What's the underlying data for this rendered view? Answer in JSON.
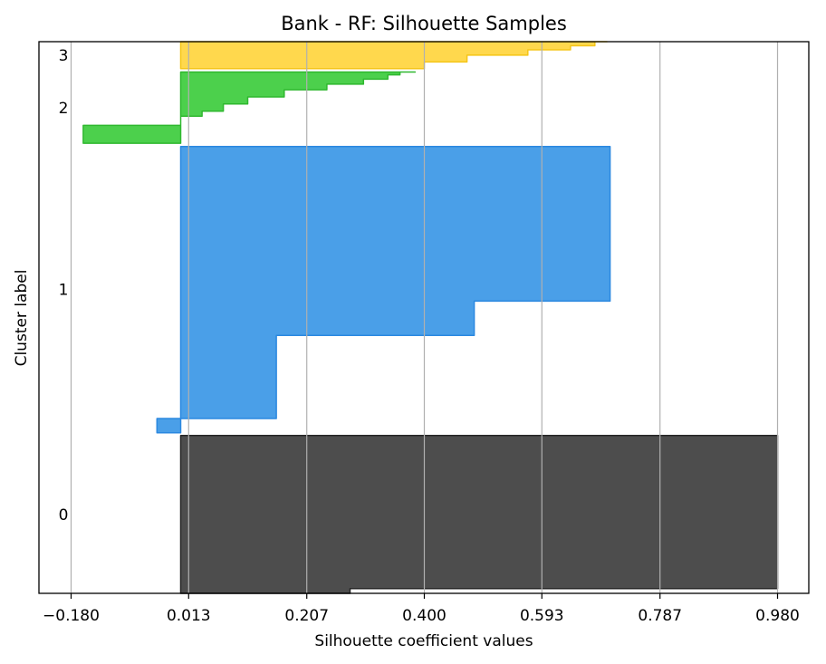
{
  "chart_data": {
    "type": "area",
    "title": "Bank - RF: Silhouette Samples",
    "xlabel": "Silhouette coefficient values",
    "ylabel": "Cluster label",
    "xlim": [
      -0.18,
      1.0
    ],
    "xticks": [
      -0.18,
      0.013,
      0.207,
      0.4,
      0.593,
      0.787,
      0.98
    ],
    "xtick_labels": [
      "−0.180",
      "0.013",
      "0.207",
      "0.400",
      "0.593",
      "0.787",
      "0.980"
    ],
    "grid": "vertical",
    "legend": "none",
    "clusters": [
      {
        "label": "0",
        "color": "#4d4d4d",
        "edge_color": "#262626",
        "band": [
          0.0,
          0.286
        ],
        "profile": [
          [
            0.0,
            0.278
          ],
          [
            0.03,
            0.98
          ],
          [
            1.0,
            0.98
          ]
        ]
      },
      {
        "label": "1",
        "color": "#4a9fe8",
        "edge_color": "#2b88e0",
        "band": [
          0.291,
          0.81
        ],
        "profile": [
          [
            0.0,
            -0.039
          ],
          [
            0.05,
            0.157
          ],
          [
            0.34,
            0.482
          ],
          [
            0.46,
            0.705
          ],
          [
            1.0,
            0.705
          ]
        ]
      },
      {
        "label": "2",
        "color": "#4cd04c",
        "edge_color": "#2fb82f",
        "band": [
          0.816,
          0.945
        ],
        "profile": [
          [
            0.0,
            -0.16
          ],
          [
            0.25,
            0.0
          ],
          [
            0.38,
            0.035
          ],
          [
            0.45,
            0.07
          ],
          [
            0.55,
            0.11
          ],
          [
            0.65,
            0.17
          ],
          [
            0.75,
            0.24
          ],
          [
            0.83,
            0.3
          ],
          [
            0.9,
            0.34
          ],
          [
            0.96,
            0.36
          ],
          [
            1.0,
            0.385
          ]
        ]
      },
      {
        "label": "3",
        "color": "#ffd84d",
        "edge_color": "#f5c518",
        "band": [
          0.951,
          1.0
        ],
        "profile": [
          [
            0.0,
            0.4
          ],
          [
            0.25,
            0.47
          ],
          [
            0.5,
            0.57
          ],
          [
            0.7,
            0.64
          ],
          [
            0.85,
            0.68
          ],
          [
            1.0,
            0.7
          ]
        ]
      }
    ]
  }
}
